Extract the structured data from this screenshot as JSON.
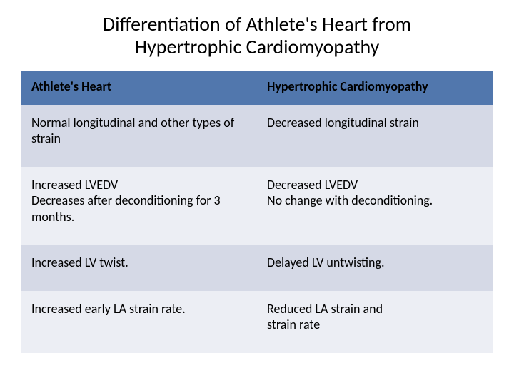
{
  "title": "Differentiation of Athlete's Heart from Hypertrophic Cardiomyopathy",
  "table": {
    "header_bg": "#5177ad",
    "row_alt_bg": "#d5d9e6",
    "row_bg": "#eceef4",
    "text_color": "#000000",
    "header_fontsize": 18,
    "cell_fontsize": 18,
    "columns": [
      "Athlete's Heart",
      "Hypertrophic Cardiomyopathy"
    ],
    "rows": [
      [
        "Normal longitudinal and other types of strain",
        "Decreased longitudinal strain"
      ],
      [
        "Increased LVEDV\nDecreases after deconditioning for 3 months.",
        "Decreased LVEDV\nNo change with deconditioning."
      ],
      [
        "Increased LV twist.",
        "Delayed LV untwisting."
      ],
      [
        "Increased early LA strain rate.",
        "Reduced LA strain and\nstrain rate"
      ]
    ]
  }
}
